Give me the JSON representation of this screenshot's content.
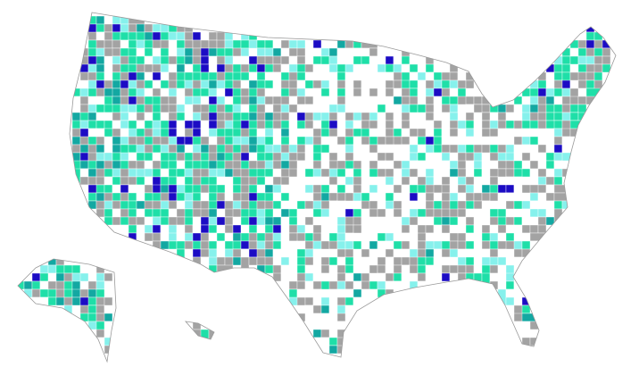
{
  "map": {
    "colors": [
      "#ffffff",
      "#a3a3a3",
      "#1fdfa8",
      "#86f1ec",
      "#1c0cc4",
      "#13a8a2"
    ]
  }
}
